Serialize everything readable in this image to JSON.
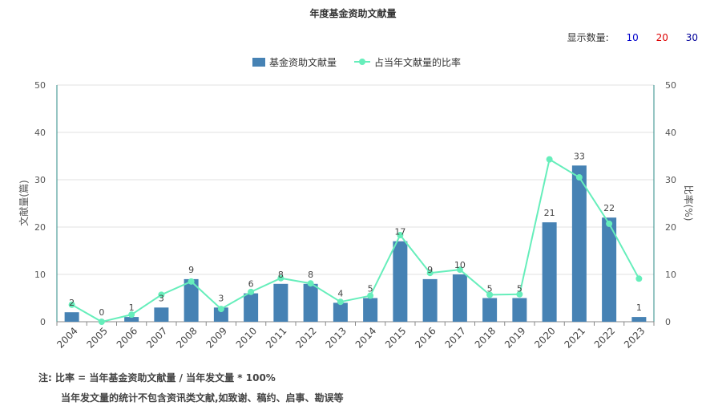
{
  "title": "年度基金资助文献量",
  "display_count": {
    "label": "显示数量:",
    "options": [
      {
        "text": "10",
        "color": "#0000cc"
      },
      {
        "text": "20",
        "color": "#dd0000"
      },
      {
        "text": "30",
        "color": "#000099"
      }
    ]
  },
  "notes": {
    "line1": "注:   比率 = 当年基金资助文献量 / 当年发文量 * 100%",
    "line2": "当年发文量的统计不包含资讯类文献,如致谢、稿约、启事、勘误等"
  },
  "chart_data": {
    "type": "bar",
    "categories": [
      "2004",
      "2005",
      "2006",
      "2007",
      "2008",
      "2009",
      "2010",
      "2011",
      "2012",
      "2013",
      "2014",
      "2015",
      "2016",
      "2017",
      "2018",
      "2019",
      "2020",
      "2021",
      "2022",
      "2023"
    ],
    "series": [
      {
        "name": "基金资助文献量",
        "type": "bar",
        "axis": "left",
        "color": "#4682b4",
        "values": [
          2,
          0,
          1,
          3,
          9,
          3,
          6,
          8,
          8,
          4,
          5,
          17,
          9,
          10,
          5,
          5,
          21,
          33,
          22,
          1
        ]
      },
      {
        "name": "占当年文献量的比率",
        "type": "line",
        "axis": "right",
        "color": "#66eebb",
        "values": [
          3.6,
          0,
          1.5,
          5.7,
          8.5,
          2.7,
          6.3,
          9.2,
          8.1,
          4.2,
          5.5,
          18.3,
          10.3,
          11.0,
          5.7,
          5.8,
          34.3,
          30.5,
          20.7,
          9.1
        ]
      }
    ],
    "ylabel": "文献量(篇)",
    "y2label": "比率(%)",
    "ylim": [
      0,
      50
    ],
    "y2lim": [
      0,
      50
    ],
    "yticks": [
      0,
      10,
      20,
      30,
      40,
      50
    ],
    "grid": true,
    "legend": "top-center"
  }
}
